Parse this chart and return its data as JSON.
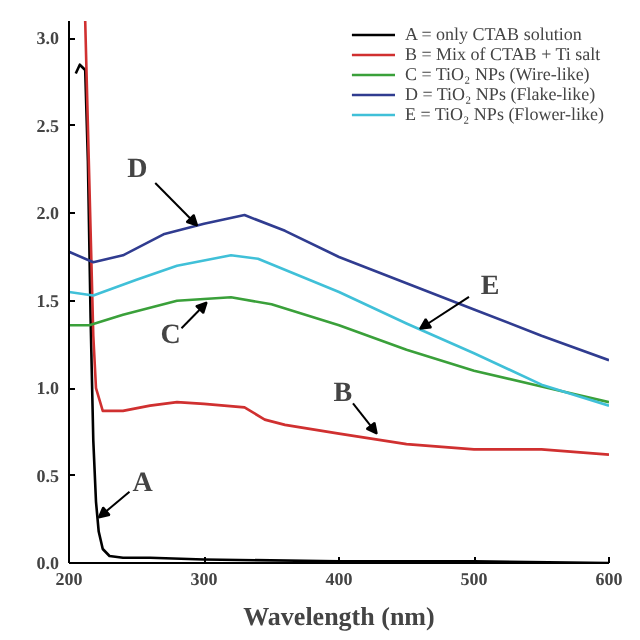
{
  "chart_data": {
    "type": "line",
    "xlabel": "Wavelength (nm)",
    "xlim": [
      200,
      600
    ],
    "ylim": [
      0,
      3.1
    ],
    "xticks": [
      200,
      300,
      400,
      500,
      600
    ],
    "yticks": [
      {
        "value": 0,
        "label": "0.0"
      },
      {
        "value": 0.5,
        "label": "0.5"
      },
      {
        "value": 1,
        "label": "1.0"
      },
      {
        "value": 1.5,
        "label": "1.5"
      },
      {
        "value": 2,
        "label": "2.0"
      },
      {
        "value": 2.5,
        "label": "2.5"
      },
      {
        "value": 3,
        "label": "3.0"
      }
    ],
    "grid": false,
    "legend": "top right",
    "line_style": "solid",
    "marker": "none",
    "series": [
      {
        "name": "A = only CTAB solution",
        "color": "#000000",
        "x": [
          205,
          208,
          212,
          214,
          216,
          218,
          220,
          222,
          225,
          230,
          240,
          260,
          300,
          400,
          500,
          600
        ],
        "values": [
          2.8,
          2.85,
          2.82,
          2.3,
          1.4,
          0.7,
          0.35,
          0.18,
          0.08,
          0.04,
          0.03,
          0.03,
          0.02,
          0.01,
          0.01,
          0.0
        ]
      },
      {
        "name": "B = Mix of CTAB + Ti salt",
        "color": "#d03030",
        "x": [
          212,
          215,
          218,
          220,
          225,
          240,
          260,
          280,
          300,
          330,
          345,
          360,
          400,
          450,
          500,
          550,
          600
        ],
        "values": [
          3.1,
          2.2,
          1.3,
          1.0,
          0.87,
          0.87,
          0.9,
          0.92,
          0.91,
          0.89,
          0.82,
          0.79,
          0.74,
          0.68,
          0.65,
          0.65,
          0.62
        ]
      },
      {
        "name": "C = TiO₂ NPs (Wire-like)",
        "color": "#3aa03a",
        "x": [
          200,
          215,
          240,
          280,
          320,
          350,
          400,
          450,
          500,
          550,
          600
        ],
        "values": [
          1.36,
          1.36,
          1.42,
          1.5,
          1.52,
          1.48,
          1.36,
          1.22,
          1.1,
          1.01,
          0.92
        ]
      },
      {
        "name": "D = TiO₂ NPs (Flake-like)",
        "color": "#303c90",
        "x": [
          200,
          218,
          240,
          270,
          300,
          330,
          360,
          400,
          450,
          500,
          550,
          600
        ],
        "values": [
          1.78,
          1.72,
          1.76,
          1.88,
          1.94,
          1.99,
          1.9,
          1.75,
          1.6,
          1.45,
          1.3,
          1.16
        ]
      },
      {
        "name": "E = TiO₂ NPs (Flower-like)",
        "color": "#40c0d8",
        "x": [
          200,
          218,
          250,
          280,
          320,
          340,
          400,
          450,
          500,
          550,
          600
        ],
        "values": [
          1.55,
          1.53,
          1.62,
          1.7,
          1.76,
          1.74,
          1.55,
          1.37,
          1.2,
          1.02,
          0.9
        ]
      }
    ],
    "annotations": [
      {
        "text": "D",
        "x": 295,
        "y": 1.93
      },
      {
        "text": "C",
        "x": 302,
        "y": 1.49
      },
      {
        "text": "B",
        "x": 428,
        "y": 0.74
      },
      {
        "text": "A",
        "x": 222,
        "y": 0.26
      },
      {
        "text": "E",
        "x": 460,
        "y": 1.34
      }
    ]
  }
}
